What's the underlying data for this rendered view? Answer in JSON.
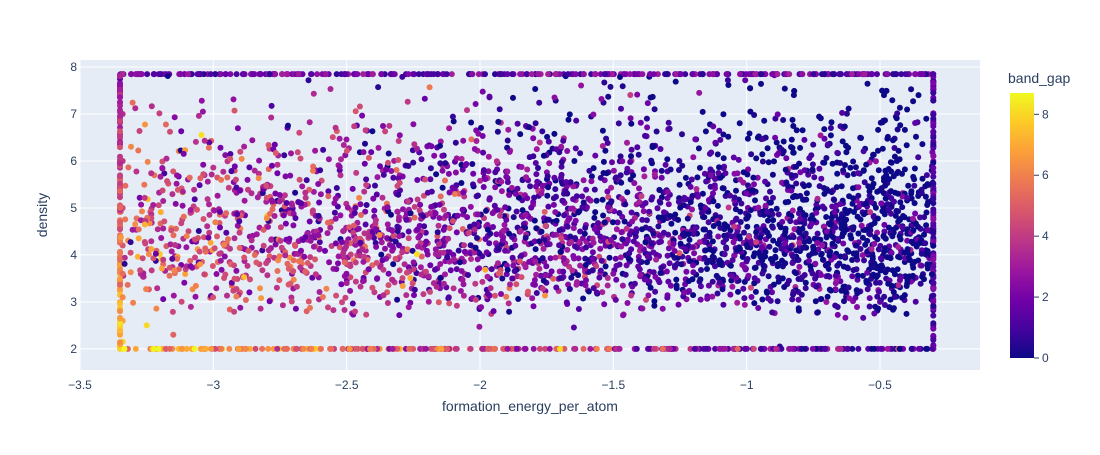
{
  "chart_data": {
    "type": "scatter",
    "xlabel": "formation_energy_per_atom",
    "ylabel": "density",
    "xlim": [
      -3.5,
      -0.125
    ],
    "ylim": [
      1.55,
      8.15
    ],
    "x_ticks": [
      -3.5,
      -3,
      -2.5,
      -2,
      -1.5,
      -1,
      -0.5
    ],
    "x_tick_labels": [
      "−3.5",
      "−3",
      "−2.5",
      "−2",
      "−1.5",
      "−1",
      "−0.5"
    ],
    "y_ticks": [
      2,
      3,
      4,
      5,
      6,
      7,
      8
    ],
    "y_tick_labels": [
      "2",
      "3",
      "4",
      "5",
      "6",
      "7",
      "8"
    ],
    "grid": true,
    "colorbar": {
      "title": "band_gap",
      "range": [
        0,
        8.7
      ],
      "ticks": [
        0,
        2,
        4,
        6,
        8
      ],
      "tick_labels": [
        "0",
        "2",
        "4",
        "6",
        "8"
      ],
      "colorscale": [
        "#0d0887",
        "#46039f",
        "#7201a8",
        "#9c179e",
        "#bd3786",
        "#d8576b",
        "#ed7953",
        "#fb9f3a",
        "#fdca26",
        "#f0f921"
      ]
    },
    "data_extent": {
      "x": [
        -3.35,
        -0.3
      ],
      "y": [
        2.0,
        7.85
      ]
    },
    "points": [
      {
        "x": -3.34,
        "y": 2.0,
        "c": 8.2
      },
      {
        "x": -3.34,
        "y": 2.15,
        "c": 7.9
      },
      {
        "x": -3.34,
        "y": 2.6,
        "c": 6.8
      },
      {
        "x": -3.34,
        "y": 3.1,
        "c": 6.2
      },
      {
        "x": -3.34,
        "y": 3.6,
        "c": 5.4
      },
      {
        "x": -3.34,
        "y": 4.2,
        "c": 4.8
      },
      {
        "x": -3.34,
        "y": 5.0,
        "c": 4.5
      },
      {
        "x": -3.34,
        "y": 6.0,
        "c": 3.8
      },
      {
        "x": -3.34,
        "y": 7.0,
        "c": 3.6
      },
      {
        "x": -3.34,
        "y": 7.85,
        "c": 3.4
      },
      {
        "x": -3.25,
        "y": 2.5,
        "c": 8.0
      },
      {
        "x": -3.15,
        "y": 2.3,
        "c": 5.2
      },
      {
        "x": -3.1,
        "y": 4.4,
        "c": 6.0
      },
      {
        "x": -3.05,
        "y": 3.8,
        "c": 6.6
      },
      {
        "x": -2.97,
        "y": 2.0,
        "c": 5.8
      },
      {
        "x": -2.9,
        "y": 3.2,
        "c": 4.9
      },
      {
        "x": -2.8,
        "y": 4.6,
        "c": 4.2
      },
      {
        "x": -2.65,
        "y": 2.8,
        "c": 5.1
      },
      {
        "x": -2.5,
        "y": 3.4,
        "c": 3.2
      },
      {
        "x": -2.4,
        "y": 5.2,
        "c": 2.1
      },
      {
        "x": -2.3,
        "y": 2.0,
        "c": 7.3
      },
      {
        "x": -2.1,
        "y": 4.0,
        "c": 1.8
      },
      {
        "x": -1.95,
        "y": 2.0,
        "c": 7.6
      },
      {
        "x": -1.8,
        "y": 6.1,
        "c": 0.9
      },
      {
        "x": -1.7,
        "y": 2.0,
        "c": 8.1
      },
      {
        "x": -1.5,
        "y": 3.6,
        "c": 2.5
      },
      {
        "x": -1.3,
        "y": 7.85,
        "c": 1.2
      },
      {
        "x": -1.1,
        "y": 4.8,
        "c": 0.6
      },
      {
        "x": -0.9,
        "y": 2.0,
        "c": 4.6
      },
      {
        "x": -0.7,
        "y": 5.4,
        "c": 0.3
      },
      {
        "x": -0.5,
        "y": 3.0,
        "c": 1.5
      },
      {
        "x": -0.3,
        "y": 2.0,
        "c": 2.8
      },
      {
        "x": -0.3,
        "y": 4.5,
        "c": 0.4
      },
      {
        "x": -0.3,
        "y": 6.5,
        "c": 0.2
      },
      {
        "x": -0.3,
        "y": 7.85,
        "c": 1.1
      }
    ]
  }
}
